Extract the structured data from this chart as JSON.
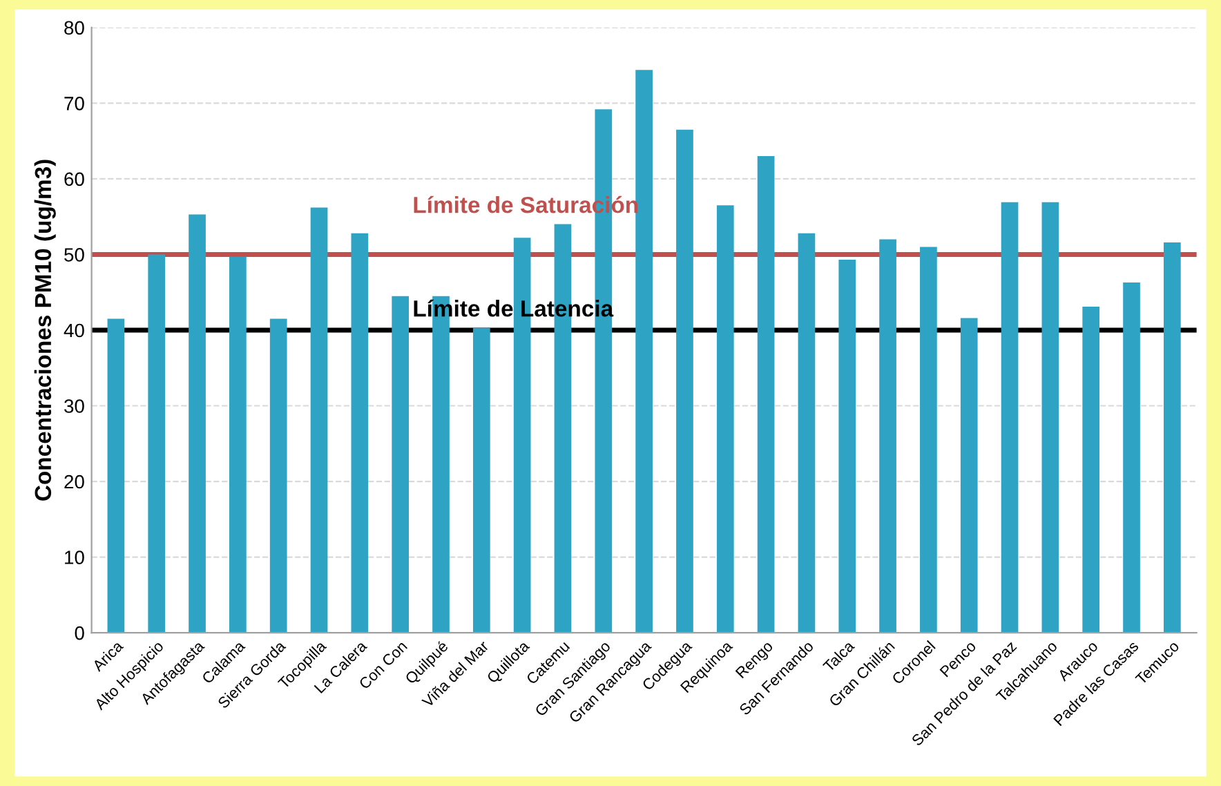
{
  "chart_data": {
    "type": "bar",
    "ylabel": "Concentraciones PM10 (ug/m3)",
    "categories": [
      "Arica",
      "Alto Hospicio",
      "Antofagasta",
      "Calama",
      "Sierra Gorda",
      "Tocopilla",
      "La Calera",
      "Con Con",
      "Quilpué",
      "Viña del Mar",
      "Quillota",
      "Catemu",
      "Gran Santiago",
      "Gran Rancagua",
      "Codegua",
      "Requinoa",
      "Rengo",
      "San Fernando",
      "Talca",
      "Gran Chillán",
      "Coronel",
      "Penco",
      "San Pedro de la Paz",
      "Talcahuano",
      "Arauco",
      "Padre las Casas",
      "Temuco"
    ],
    "values": [
      41.5,
      50,
      55.3,
      49.7,
      41.5,
      56.2,
      52.8,
      44.5,
      44.5,
      40.3,
      52.2,
      54,
      69.2,
      74.4,
      66.5,
      56.5,
      63,
      52.8,
      49.3,
      52,
      51,
      41.6,
      56.9,
      56.9,
      43.1,
      46.3,
      51.6
    ],
    "color": "#2ea3c4",
    "ylim": [
      0,
      80
    ],
    "yticks": [
      0,
      10,
      20,
      30,
      40,
      50,
      60,
      70,
      80
    ],
    "grid": "y",
    "ref_lines": [
      {
        "axis": "y",
        "value": 50,
        "label": "Límite de Saturación",
        "color": "#c0504d"
      },
      {
        "axis": "y",
        "value": 40,
        "label": "Límite de Latencia",
        "color": "#000000"
      }
    ]
  }
}
